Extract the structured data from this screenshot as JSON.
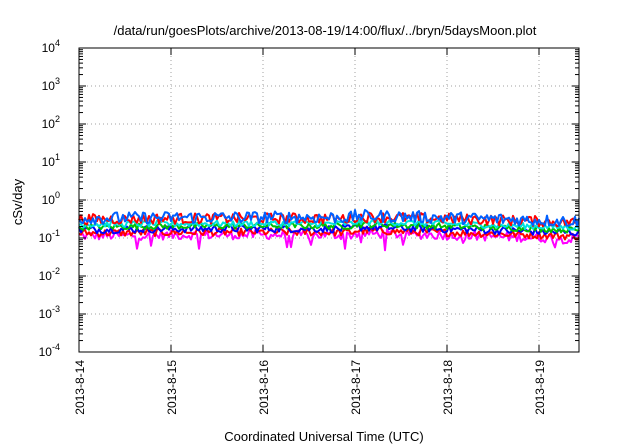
{
  "chart_data": {
    "type": "line",
    "title": "/data/run/goesPlots/archive/2013-08-19/14:00/flux/../bryn/5daysMoon.plot",
    "xlabel": "Coordinated Universal Time (UTC)",
    "ylabel": "cSv/day",
    "yscale": "log",
    "grid": true,
    "ylim": [
      0.0001,
      10000
    ],
    "xlim": [
      "2013-08-14",
      "2013-08-19 14:00"
    ],
    "x_ticks": [
      "2013-8-14",
      "2013-8-15",
      "2013-8-16",
      "2013-8-17",
      "2013-8-18",
      "2013-8-19"
    ],
    "y_ticks": [
      {
        "base": "10",
        "exp": "-4"
      },
      {
        "base": "10",
        "exp": "-3"
      },
      {
        "base": "10",
        "exp": "-2"
      },
      {
        "base": "10",
        "exp": "-1"
      },
      {
        "base": "10",
        "exp": "0"
      },
      {
        "base": "10",
        "exp": "1"
      },
      {
        "base": "10",
        "exp": "2"
      },
      {
        "base": "10",
        "exp": "3"
      },
      {
        "base": "10",
        "exp": "4"
      }
    ],
    "series": [
      {
        "color": "#ff00ff",
        "level": 0.11,
        "noise": 0.12,
        "dips": true
      },
      {
        "color": "#ff0000",
        "level": 0.13,
        "noise": 0.1,
        "dips": false
      },
      {
        "color": "#0000ff",
        "level": 0.16,
        "noise": 0.1,
        "dips": false
      },
      {
        "color": "#00c000",
        "level": 0.19,
        "noise": 0.08,
        "dips": false
      },
      {
        "color": "#00e0e0",
        "level": 0.22,
        "noise": 0.08,
        "dips": false
      },
      {
        "color": "#ff0000",
        "level": 0.3,
        "noise": 0.14,
        "dips": false
      },
      {
        "color": "#0060ff",
        "level": 0.32,
        "noise": 0.16,
        "dips": false
      }
    ]
  }
}
